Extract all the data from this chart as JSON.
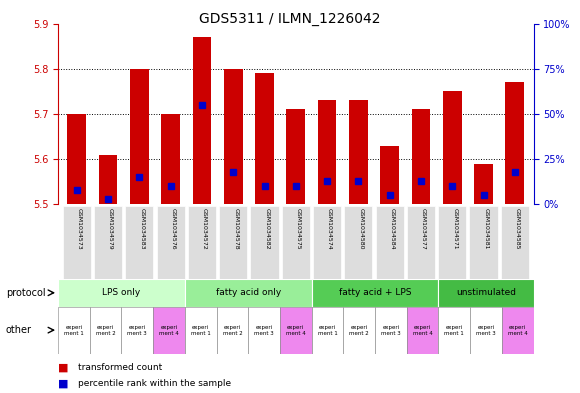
{
  "title": "GDS5311 / ILMN_1226042",
  "samples": [
    "GSM1034573",
    "GSM1034579",
    "GSM1034583",
    "GSM1034576",
    "GSM1034572",
    "GSM1034578",
    "GSM1034582",
    "GSM1034575",
    "GSM1034574",
    "GSM1034580",
    "GSM1034584",
    "GSM1034577",
    "GSM1034571",
    "GSM1034581",
    "GSM1034585"
  ],
  "transformed_count": [
    5.7,
    5.61,
    5.8,
    5.7,
    5.87,
    5.8,
    5.79,
    5.71,
    5.73,
    5.73,
    5.63,
    5.71,
    5.75,
    5.59,
    5.77
  ],
  "percentile_rank": [
    8,
    3,
    15,
    10,
    55,
    18,
    10,
    10,
    13,
    13,
    5,
    13,
    10,
    5,
    18
  ],
  "ymin": 5.5,
  "ymax": 5.9,
  "y2min": 0,
  "y2max": 100,
  "yticks": [
    5.5,
    5.6,
    5.7,
    5.8,
    5.9
  ],
  "y2ticks": [
    0,
    25,
    50,
    75,
    100
  ],
  "protocols": [
    {
      "label": "LPS only",
      "start": 0,
      "end": 4,
      "color": "#ccffcc"
    },
    {
      "label": "fatty acid only",
      "start": 4,
      "end": 8,
      "color": "#99ee99"
    },
    {
      "label": "fatty acid + LPS",
      "start": 8,
      "end": 12,
      "color": "#55cc55"
    },
    {
      "label": "unstimulated",
      "start": 12,
      "end": 15,
      "color": "#44bb44"
    }
  ],
  "other_labels": [
    "experi\nment 1",
    "experi\nment 2",
    "experi\nment 3",
    "experi\nment 4",
    "experi\nment 1",
    "experi\nment 2",
    "experi\nment 3",
    "experi\nment 4",
    "experi\nment 1",
    "experi\nment 2",
    "experi\nment 3",
    "experi\nment 4",
    "experi\nment 1",
    "experi\nment 3",
    "experi\nment 4"
  ],
  "other_colors": [
    "#ffffff",
    "#ffffff",
    "#ffffff",
    "#ee88ee",
    "#ffffff",
    "#ffffff",
    "#ffffff",
    "#ee88ee",
    "#ffffff",
    "#ffffff",
    "#ffffff",
    "#ee88ee",
    "#ffffff",
    "#ffffff",
    "#ee88ee"
  ],
  "bar_color": "#cc0000",
  "blue_color": "#0000cc",
  "axis_color_left": "#cc0000",
  "axis_color_right": "#0000cc",
  "bg_color": "#ffffff",
  "plot_bg": "#ffffff",
  "grid_color": "#000000",
  "sample_bg": "#dddddd"
}
